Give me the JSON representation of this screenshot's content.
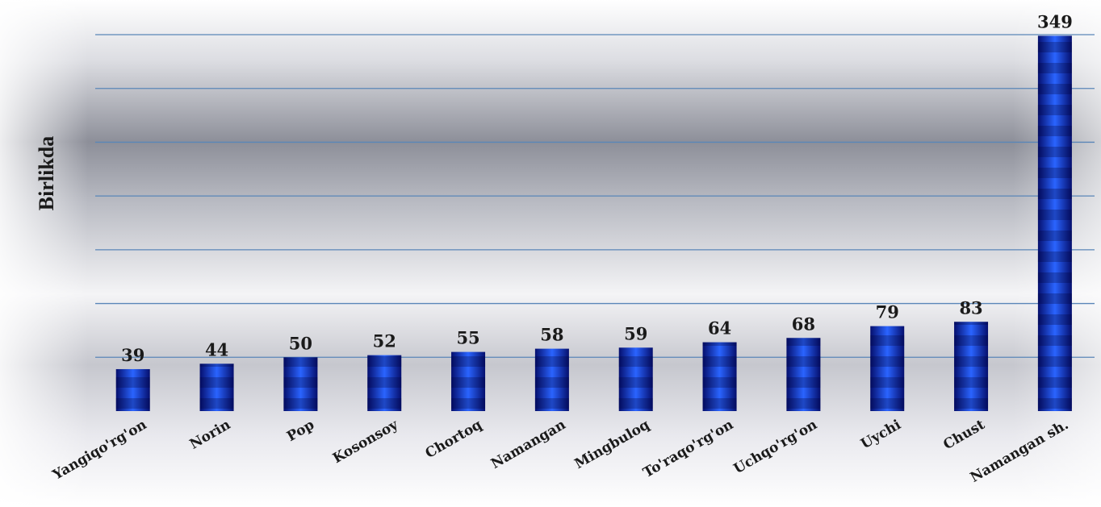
{
  "chart_data": {
    "type": "bar",
    "title": "",
    "xlabel": "",
    "ylabel": "Birlikda",
    "categories": [
      "Yangiqo'rg'on",
      "Norin",
      "Pop",
      "Kosonsoy",
      "Chortoq",
      "Namangan",
      "Mingbuloq",
      "To'raqo'rg'on",
      "Uchqo'rg'on",
      "Uychi",
      "Chust",
      "Namangan sh."
    ],
    "values": [
      39,
      44,
      50,
      52,
      55,
      58,
      59,
      64,
      68,
      79,
      83,
      349
    ],
    "value_labels": [
      "39",
      "44",
      "50",
      "52",
      "55",
      "58",
      "59",
      "64",
      "68",
      "79",
      "83",
      "349"
    ],
    "ylim": [
      0,
      350
    ],
    "grid": true,
    "legend": "none",
    "colors": {
      "bar_dark": "#05106a",
      "bar_light": "#2f6bff",
      "grid": "#5a86b8",
      "text": "#1a1a1a"
    }
  }
}
